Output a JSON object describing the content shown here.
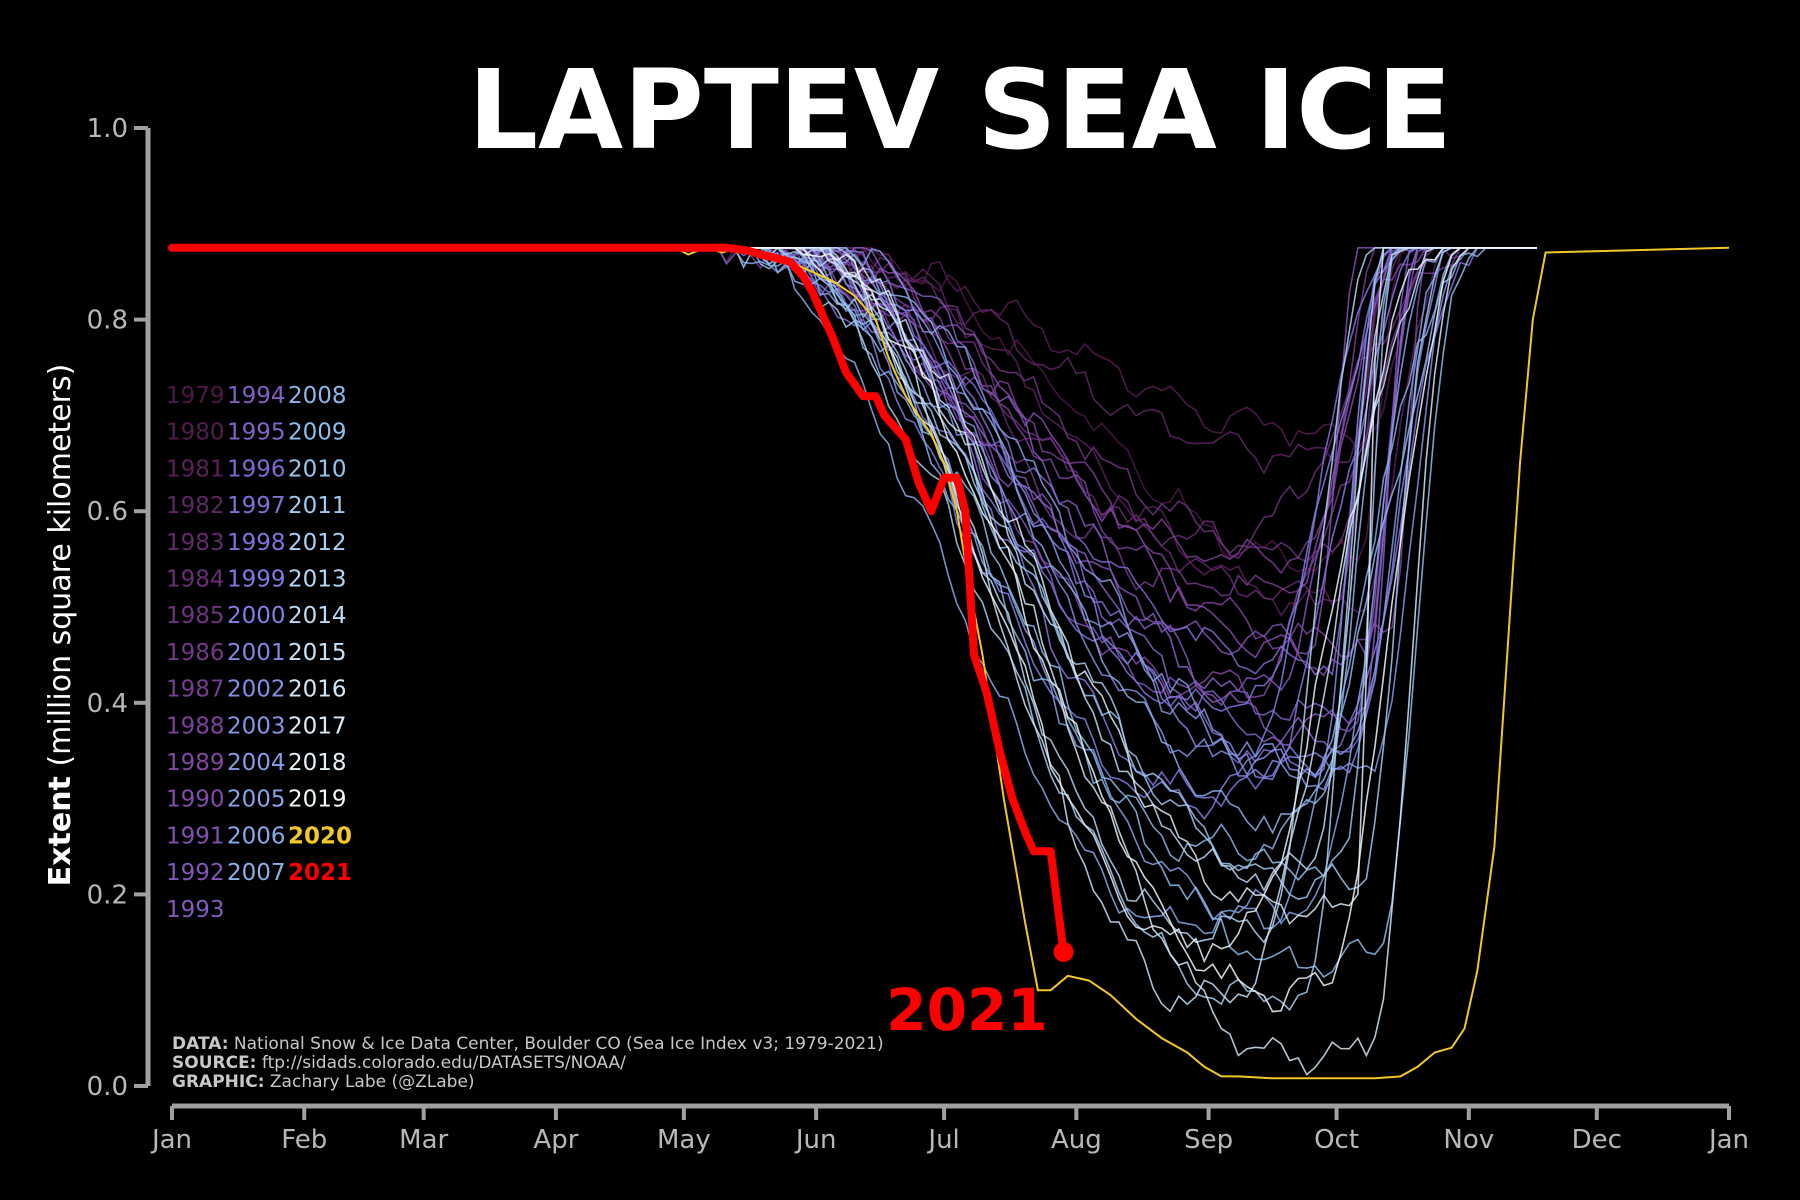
{
  "chart_data": {
    "type": "line",
    "title": "LAPTEV SEA ICE",
    "ylabel_bold": "Extent",
    "ylabel_rest": " (million square kilometers)",
    "xlabel": "",
    "ylim": [
      0.0,
      1.0
    ],
    "yticks": [
      "0.0",
      "0.2",
      "0.4",
      "0.6",
      "0.8",
      "1.0"
    ],
    "xlim": [
      0,
      365
    ],
    "xticks": [
      {
        "label": "Jan",
        "day": 0
      },
      {
        "label": "Feb",
        "day": 31
      },
      {
        "label": "Mar",
        "day": 59
      },
      {
        "label": "Apr",
        "day": 90
      },
      {
        "label": "May",
        "day": 120
      },
      {
        "label": "Jun",
        "day": 151
      },
      {
        "label": "Jul",
        "day": 181
      },
      {
        "label": "Aug",
        "day": 212
      },
      {
        "label": "Sep",
        "day": 243
      },
      {
        "label": "Oct",
        "day": 273
      },
      {
        "label": "Nov",
        "day": 304
      },
      {
        "label": "Dec",
        "day": 334
      },
      {
        "label": "Jan",
        "day": 365
      }
    ],
    "max_extent": 0.875,
    "legend_columns": [
      [
        "1979",
        "1980",
        "1981",
        "1982",
        "1983",
        "1984",
        "1985",
        "1986",
        "1987",
        "1988",
        "1989",
        "1990",
        "1991",
        "1992",
        "1993"
      ],
      [
        "1994",
        "1995",
        "1996",
        "1997",
        "1998",
        "1999",
        "2000",
        "2001",
        "2002",
        "2003",
        "2004",
        "2005",
        "2006",
        "2007"
      ],
      [
        "2008",
        "2009",
        "2010",
        "2011",
        "2012",
        "2013",
        "2014",
        "2015",
        "2016",
        "2017",
        "2018",
        "2019",
        "2020",
        "2021"
      ]
    ],
    "highlight_2021": {
      "name": "2021",
      "color": "#ff0000",
      "x": [
        0,
        130,
        135,
        138,
        141,
        145,
        148,
        150,
        153,
        155,
        158,
        162,
        165,
        167,
        170,
        172,
        175,
        178,
        181,
        184,
        186,
        188,
        191,
        194,
        197,
        200,
        202,
        206,
        209
      ],
      "y": [
        0.875,
        0.875,
        0.872,
        0.868,
        0.865,
        0.86,
        0.845,
        0.83,
        0.8,
        0.78,
        0.745,
        0.72,
        0.72,
        0.7,
        0.685,
        0.675,
        0.63,
        0.6,
        0.635,
        0.635,
        0.6,
        0.45,
        0.41,
        0.35,
        0.3,
        0.265,
        0.245,
        0.245,
        0.14
      ]
    },
    "highlight_2020": {
      "name": "2020",
      "color": "#f2c72a",
      "x": [
        0,
        118,
        121,
        125,
        129,
        133,
        136,
        140,
        145,
        150,
        155,
        160,
        165,
        168,
        172,
        175,
        178,
        181,
        184,
        187,
        190,
        195,
        200,
        203,
        206,
        210,
        215,
        220,
        226,
        232,
        238,
        242,
        246,
        250,
        258,
        270,
        282,
        288,
        292,
        296,
        300,
        303,
        306,
        310,
        313,
        316,
        319,
        322,
        365
      ],
      "y": [
        0.875,
        0.875,
        0.868,
        0.875,
        0.87,
        0.875,
        0.87,
        0.865,
        0.86,
        0.85,
        0.84,
        0.825,
        0.8,
        0.76,
        0.72,
        0.7,
        0.68,
        0.65,
        0.6,
        0.52,
        0.45,
        0.3,
        0.17,
        0.1,
        0.1,
        0.115,
        0.11,
        0.095,
        0.07,
        0.05,
        0.035,
        0.02,
        0.01,
        0.01,
        0.008,
        0.008,
        0.008,
        0.01,
        0.02,
        0.035,
        0.04,
        0.06,
        0.12,
        0.25,
        0.45,
        0.65,
        0.8,
        0.87,
        0.875
      ]
    },
    "other_years_note": ""
  },
  "annotation": {
    "label": "2021"
  },
  "credits": [
    {
      "bold": "DATA:",
      "text": " National Snow & Ice Data Center, Boulder CO (Sea Ice Index v3; 1979-2021)"
    },
    {
      "bold": "SOURCE:",
      "text": " ftp://sidads.colorado.edu/DATASETS/NOAA/"
    },
    {
      "bold": "GRAPHIC:",
      "text": " Zachary Labe (@ZLabe)"
    }
  ],
  "colors": {
    "background": "#000000",
    "axis": "#a0a0a0",
    "highlight_2021": "#ff0000",
    "highlight_2020": "#f2c72a"
  }
}
